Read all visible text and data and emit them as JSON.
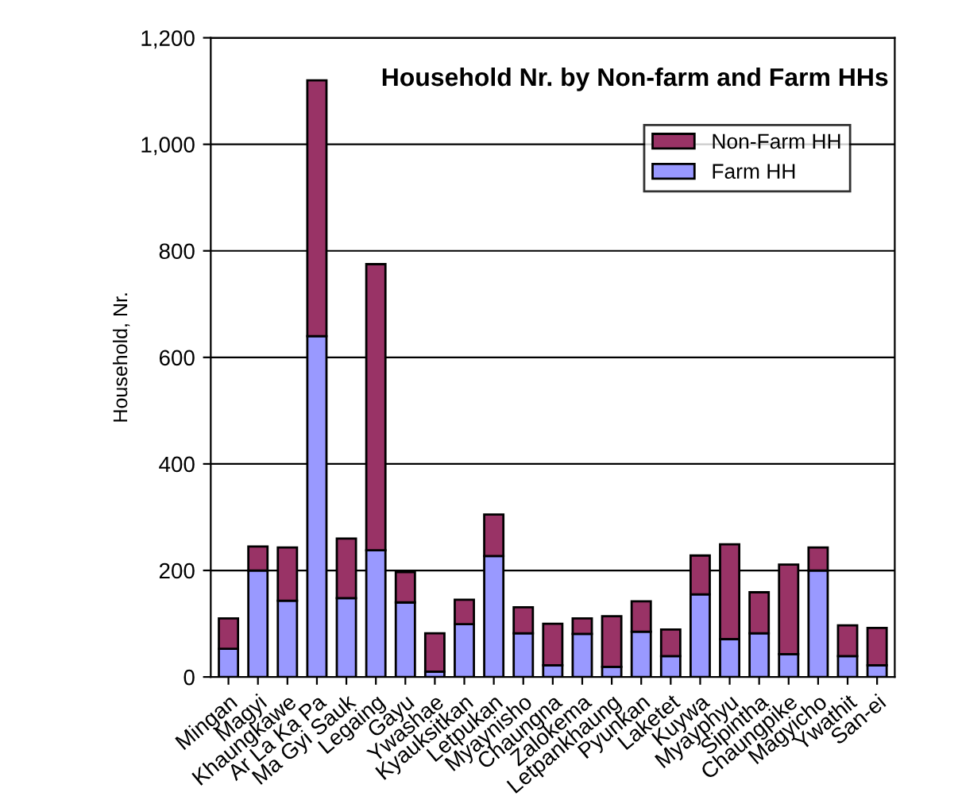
{
  "chart_data": {
    "type": "bar",
    "title": "Household Nr. by Non-farm and Farm HHs",
    "ylabel": "Household, Nr.",
    "categories": [
      "Mingan",
      "Magyi",
      "Khaungkawe",
      "Ar La Ka Pa",
      "Ma Gyi Sauk",
      "Legaing",
      "Gayu",
      "Ywashae",
      "Kyauksitkan",
      "Letpukan",
      "Myaynisho",
      "Chaungna",
      "Zalokema",
      "Letpankhaung",
      "Pyunkan",
      "Laketet",
      "Kuywa",
      "Myayphyu",
      "Sipintha",
      "Chaungpike",
      "Magyicho",
      "Ywathit",
      "San-ei"
    ],
    "stacked": true,
    "series": [
      {
        "name": "Farm HH",
        "color": "#9999ff",
        "values": [
          53,
          200,
          143,
          640,
          148,
          238,
          140,
          10,
          99,
          227,
          82,
          22,
          81,
          19,
          85,
          39,
          155,
          71,
          82,
          43,
          200,
          39,
          22
        ]
      },
      {
        "name": "Non-Farm HH",
        "color": "#993366",
        "values": [
          57,
          45,
          100,
          480,
          112,
          537,
          57,
          72,
          46,
          78,
          49,
          78,
          29,
          95,
          57,
          50,
          73,
          178,
          77,
          168,
          43,
          58,
          70
        ]
      }
    ],
    "ylim": [
      0,
      1200
    ],
    "yticks": [
      0,
      200,
      400,
      600,
      800,
      {
        "value": 1000,
        "label": "1,000"
      },
      {
        "value": 1200,
        "label": "1,200"
      }
    ],
    "grid": "y",
    "legend": "top right"
  }
}
